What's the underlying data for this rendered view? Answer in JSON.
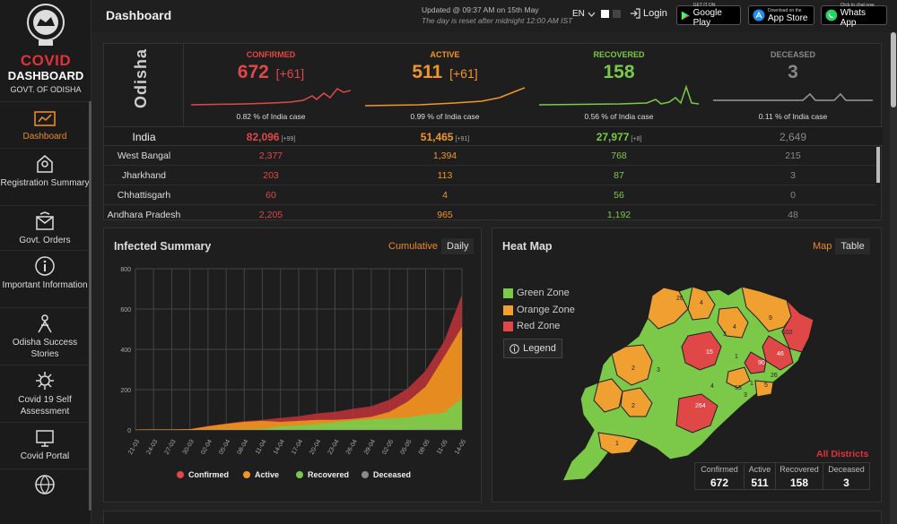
{
  "brand": {
    "covid": "COVID",
    "dashboard": "DASHBOARD",
    "govt": "GOVT. OF ODISHA"
  },
  "nav": [
    {
      "label": "Dashboard",
      "icon": "dashboard-icon"
    },
    {
      "label": "Registration Summary",
      "icon": "registration-icon"
    },
    {
      "label": "Govt. Orders",
      "icon": "orders-icon"
    },
    {
      "label": "Important Information",
      "icon": "info-icon"
    },
    {
      "label": "Odisha Success Stories",
      "icon": "success-icon"
    },
    {
      "label": "Covid 19 Self Assessment",
      "icon": "assessment-icon"
    },
    {
      "label": "Covid Portal",
      "icon": "portal-icon"
    }
  ],
  "topbar": {
    "title": "Dashboard",
    "updated": "Updated @ 09:37 AM on 15th May",
    "reset": "The day is reset after midnight 12:00 AM IST",
    "lang": "EN",
    "login": "Login",
    "stores": [
      {
        "small": "GET IT ON",
        "big": "Google Play"
      },
      {
        "small": "Download on the",
        "big": "App Store"
      },
      {
        "small": "Click to chat now",
        "big": "Whats App"
      }
    ]
  },
  "colors": {
    "confirmed": "#e04848",
    "active": "#f0952b",
    "recovered": "#7cc94a",
    "deceased": "#888888"
  },
  "stats": {
    "state": "Odisha",
    "cards": [
      {
        "label": "CONFIRMED",
        "value": "672",
        "delta": "[+61]",
        "pct": "0.82 % of India case"
      },
      {
        "label": "ACTIVE",
        "value": "511",
        "delta": "[+61]",
        "pct": "0.99 % of India case"
      },
      {
        "label": "RECOVERED",
        "value": "158",
        "delta": "",
        "pct": "0.56 % of India case"
      },
      {
        "label": "DECEASED",
        "value": "3",
        "delta": "",
        "pct": "0.11 % of India case"
      }
    ],
    "india": {
      "name": "India",
      "confirmed": "82,096",
      "confirmed_delta": "[+99]",
      "active": "51,465",
      "active_delta": "[+91]",
      "recovered": "27,977",
      "recovered_delta": "[+8]",
      "deceased": "2,649"
    },
    "rows": [
      {
        "name": "West Bangal",
        "confirmed": "2,377",
        "active": "1,394",
        "recovered": "768",
        "deceased": "215"
      },
      {
        "name": "Jharkhand",
        "confirmed": "203",
        "active": "113",
        "recovered": "87",
        "deceased": "3"
      },
      {
        "name": "Chhattisgarh",
        "confirmed": "60",
        "active": "4",
        "recovered": "56",
        "deceased": "0"
      },
      {
        "name": "Andhara Pradesh",
        "confirmed": "2,205",
        "active": "965",
        "recovered": "1,192",
        "deceased": "48"
      }
    ]
  },
  "infected": {
    "title": "Infected Summary",
    "cumulative": "Cumulative",
    "daily": "Daily"
  },
  "chart_data": {
    "type": "area",
    "title": "Infected Summary",
    "x": [
      "21-03",
      "24-03",
      "27-03",
      "30-03",
      "02-04",
      "05-04",
      "08-04",
      "11-04",
      "14-04",
      "17-04",
      "20-04",
      "23-04",
      "26-04",
      "29-04",
      "02-05",
      "05-05",
      "08-05",
      "11-05",
      "14-05"
    ],
    "series": [
      {
        "name": "Confirmed",
        "values": [
          2,
          3,
          3,
          4,
          20,
          32,
          44,
          50,
          60,
          68,
          82,
          90,
          105,
          118,
          150,
          205,
          294,
          437,
          672
        ]
      },
      {
        "name": "Active",
        "values": [
          2,
          3,
          3,
          4,
          18,
          30,
          40,
          45,
          40,
          45,
          50,
          50,
          55,
          65,
          90,
          140,
          215,
          360,
          511
        ]
      },
      {
        "name": "Recovered",
        "values": [
          0,
          0,
          0,
          0,
          0,
          2,
          2,
          5,
          18,
          22,
          30,
          38,
          48,
          52,
          58,
          62,
          76,
          85,
          158
        ]
      },
      {
        "name": "Deceased",
        "values": [
          0,
          0,
          0,
          0,
          1,
          1,
          1,
          1,
          1,
          1,
          1,
          1,
          1,
          1,
          1,
          1,
          2,
          2,
          3
        ]
      }
    ],
    "ylim": [
      0,
      800
    ],
    "yticks": [
      "0",
      "200",
      "400",
      "600",
      "800"
    ],
    "legend": [
      "Confirmed",
      "Active",
      "Recovered",
      "Deceased"
    ]
  },
  "heatmap": {
    "title": "Heat Map",
    "map": "Map",
    "table": "Table",
    "zones": [
      {
        "label": "Green Zone",
        "color": "#7cc94a"
      },
      {
        "label": "Orange Zone",
        "color": "#f0a030"
      },
      {
        "label": "Red Zone",
        "color": "#e04848"
      }
    ],
    "legend_btn": "Legend",
    "district_labels": [
      "26",
      "4",
      "9",
      "102",
      "3",
      "15",
      "1",
      "46",
      "90",
      "26",
      "2",
      "3",
      "4",
      "53",
      "1",
      "6",
      "5",
      "3",
      "264",
      "2",
      "1"
    ],
    "all_districts": "All Districts",
    "summary": [
      {
        "label": "Confirmed",
        "value": "672"
      },
      {
        "label": "Active",
        "value": "511"
      },
      {
        "label": "Recovered",
        "value": "158"
      },
      {
        "label": "Deceased",
        "value": "3"
      }
    ]
  }
}
